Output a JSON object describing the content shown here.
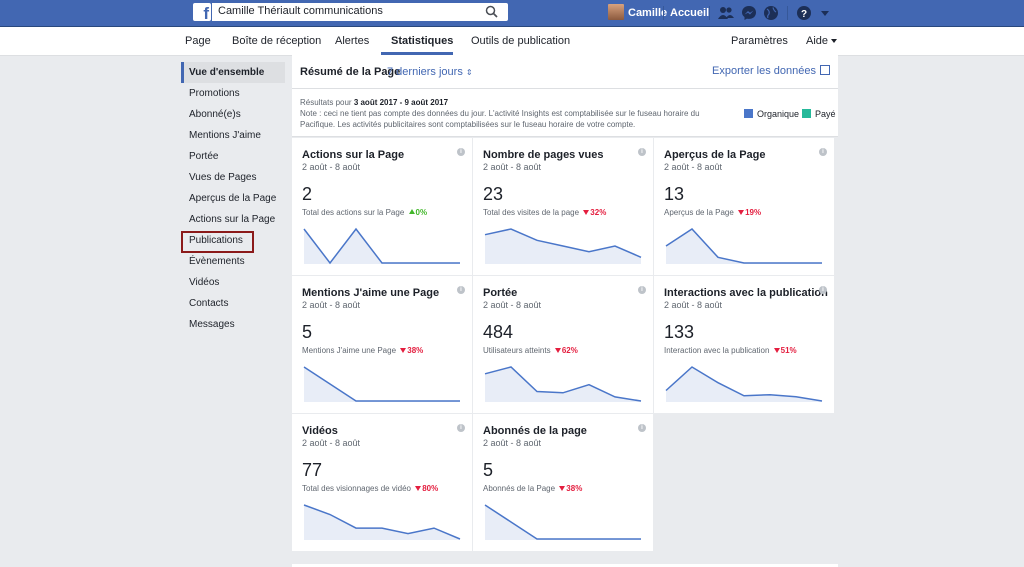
{
  "topbar": {
    "search_value": "Camille Thériault communications",
    "user_name": "Camille",
    "home_label": "Accueil",
    "icons": [
      "facebook-logo",
      "search-icon",
      "friends-icon",
      "messenger-icon",
      "globe-icon",
      "help-icon",
      "caret-down-icon"
    ]
  },
  "subnav": {
    "tabs": [
      "Page",
      "Boîte de réception",
      "Alertes",
      "Statistiques",
      "Outils de publication"
    ],
    "active_tab": "Statistiques",
    "settings": "Paramètres",
    "help": "Aide"
  },
  "sidebar": {
    "items": [
      "Vue d'ensemble",
      "Promotions",
      "Abonné(e)s",
      "Mentions J'aime",
      "Portée",
      "Vues de Pages",
      "Aperçus de la Page",
      "Actions sur la Page",
      "Publications",
      "Évènements",
      "Vidéos",
      "Contacts",
      "Messages"
    ],
    "active": "Vue d'ensemble",
    "highlighted": "Publications"
  },
  "summary": {
    "title": "Résumé de la Page",
    "range": "7 derniers jours",
    "export": "Exporter les données",
    "results_prefix": "Résultats pour ",
    "results_dates": "3 août 2017 - 9 août 2017",
    "note_line1": "Note : ceci ne tient pas compte des données du jour. L'activité Insights est comptabilisée sur le fuseau horaire du",
    "note_line2": "Pacifique. Les activités publicitaires sont comptabilisées sur le fuseau horaire de votre compte.",
    "legend": [
      {
        "label": "Organique",
        "color": "#4a76c9"
      },
      {
        "label": "Payé",
        "color": "#26b99a"
      }
    ]
  },
  "cards": [
    {
      "title": "Actions sur la Page",
      "date": "2 août - 8 août",
      "value": "2",
      "subtitle": "Total des actions sur la Page",
      "change": "0%",
      "direction": "up",
      "trend": [
        2,
        0,
        2,
        0,
        0,
        0,
        0
      ]
    },
    {
      "title": "Nombre de pages vues",
      "date": "2 août - 8 août",
      "value": "23",
      "subtitle": "Total des visites de la page",
      "change": "32%",
      "direction": "down",
      "trend": [
        5,
        6,
        4,
        3,
        2,
        3,
        1
      ]
    },
    {
      "title": "Aperçus de la Page",
      "date": "2 août - 8 août",
      "value": "13",
      "subtitle": "Aperçus de la Page",
      "change": "19%",
      "direction": "down",
      "trend": [
        3,
        6,
        1,
        0,
        0,
        0,
        0
      ]
    },
    {
      "title": "Mentions J'aime une Page",
      "date": "2 août - 8 août",
      "value": "5",
      "subtitle": "Mentions J'aime une Page",
      "change": "38%",
      "direction": "down",
      "trend": [
        4,
        2,
        0,
        0,
        0,
        0,
        0
      ]
    },
    {
      "title": "Portée",
      "date": "2 août - 8 août",
      "value": "484",
      "subtitle": "Utilisateurs atteints",
      "change": "62%",
      "direction": "down",
      "trend": [
        100,
        125,
        35,
        30,
        60,
        15,
        0
      ]
    },
    {
      "title": "Interactions avec la publication",
      "date": "2 août - 8 août",
      "value": "133",
      "subtitle": "Interaction avec la publication",
      "change": "51%",
      "direction": "down",
      "trend": [
        20,
        65,
        35,
        10,
        12,
        8,
        0
      ]
    },
    {
      "title": "Vidéos",
      "date": "2 août - 8 août",
      "value": "77",
      "subtitle": "Total des visionnages de vidéo",
      "change": "80%",
      "direction": "down",
      "trend": [
        25,
        18,
        8,
        8,
        4,
        8,
        0
      ]
    },
    {
      "title": "Abonnés de la page",
      "date": "2 août - 8 août",
      "value": "5",
      "subtitle": "Abonnés de la Page",
      "change": "38%",
      "direction": "down",
      "trend": [
        4,
        2,
        0,
        0,
        0,
        0,
        0
      ]
    }
  ],
  "colors": {
    "accent": "#4267b2",
    "down": "#e41e3f",
    "up": "#42b72a",
    "line": "#4a76c9",
    "fill": "#e8edf7",
    "highlight": "#8b1a1a"
  }
}
